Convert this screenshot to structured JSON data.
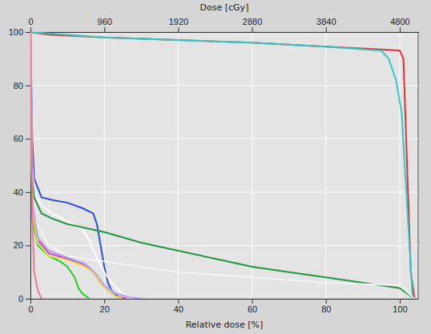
{
  "chart_data": {
    "type": "line",
    "x2label": "Dose [cGy]",
    "xlabel": "Relative dose [%]",
    "xlim": [
      0,
      105
    ],
    "xticks": [
      0,
      20,
      40,
      60,
      80,
      100
    ],
    "x2lim": [
      0,
      5040
    ],
    "x2ticks": [
      0,
      960,
      1920,
      2880,
      3840,
      4800
    ],
    "ylim": [
      0,
      100
    ],
    "yticks": [
      0,
      20,
      40,
      60,
      80,
      100
    ],
    "grid": true,
    "series": [
      {
        "color": "#e03030",
        "x": [
          0,
          5,
          20,
          40,
          60,
          80,
          95,
          100,
          101,
          102,
          103,
          104
        ],
        "values": [
          100,
          99,
          98,
          97,
          96,
          94.5,
          93.5,
          93,
          90,
          50,
          10,
          0
        ]
      },
      {
        "color": "#30c8c8",
        "x": [
          0,
          20,
          40,
          60,
          80,
          95,
          97,
          99,
          100.5,
          102,
          103.5
        ],
        "values": [
          100,
          98,
          97,
          96,
          94.5,
          93,
          90,
          82,
          70,
          35,
          0
        ]
      },
      {
        "color": "#2a4fe0",
        "x": [
          0,
          0.5,
          1,
          3,
          6,
          10,
          14,
          17,
          18,
          19,
          20,
          21,
          22,
          24,
          26
        ],
        "values": [
          100,
          60,
          45,
          38,
          37,
          36,
          34,
          32,
          28,
          20,
          12,
          6,
          3,
          0.5,
          0
        ]
      },
      {
        "color": "#ffffff",
        "x": [
          0,
          0.5,
          1,
          3,
          6,
          10,
          14,
          16,
          18,
          20,
          22,
          24,
          26,
          28
        ],
        "values": [
          100,
          50,
          40,
          35,
          32,
          29,
          26,
          22,
          15,
          10,
          6,
          3,
          1,
          0
        ]
      },
      {
        "color": "#1e9a3a",
        "x": [
          0,
          0.5,
          1,
          3,
          6,
          10,
          20,
          30,
          40,
          50,
          60,
          70,
          80,
          90,
          100,
          103,
          104
        ],
        "values": [
          100,
          45,
          38,
          32,
          30,
          28,
          25,
          21,
          18,
          15,
          12,
          10,
          8,
          6,
          4,
          1,
          0
        ]
      },
      {
        "color": "#f4f4f4",
        "x": [
          0,
          0.5,
          1,
          5,
          10,
          20,
          40,
          60,
          80,
          100,
          104
        ],
        "values": [
          100,
          40,
          30,
          20,
          16,
          14,
          10,
          8,
          6,
          5,
          0
        ]
      },
      {
        "color": "#22d022",
        "x": [
          0,
          0.5,
          2,
          5,
          8,
          10,
          12,
          13,
          14,
          16
        ],
        "values": [
          100,
          30,
          20,
          16,
          14,
          12,
          8,
          4,
          2,
          0
        ]
      },
      {
        "color": "#d040d0",
        "x": [
          0,
          0.5,
          2,
          5,
          10,
          14,
          17,
          19,
          21,
          23,
          26
        ],
        "values": [
          100,
          35,
          22,
          17,
          15,
          13,
          10,
          6,
          3,
          1,
          0
        ]
      },
      {
        "color": "#e8e040",
        "x": [
          0,
          0.5,
          2,
          5,
          10,
          14,
          17,
          19,
          21,
          23,
          25
        ],
        "values": [
          100,
          33,
          21,
          16,
          14.5,
          12.5,
          10,
          6,
          3,
          1,
          0
        ]
      },
      {
        "color": "#b8a0f0",
        "x": [
          0,
          0.5,
          2,
          5,
          10,
          15,
          18,
          20,
          23,
          27,
          30
        ],
        "values": [
          100,
          36,
          23,
          18,
          15.5,
          13,
          9,
          5,
          2,
          0.5,
          0
        ]
      },
      {
        "color": "#f07890",
        "x": [
          0,
          0.5,
          1,
          2,
          3
        ],
        "values": [
          100,
          30,
          10,
          3,
          0
        ]
      }
    ]
  }
}
